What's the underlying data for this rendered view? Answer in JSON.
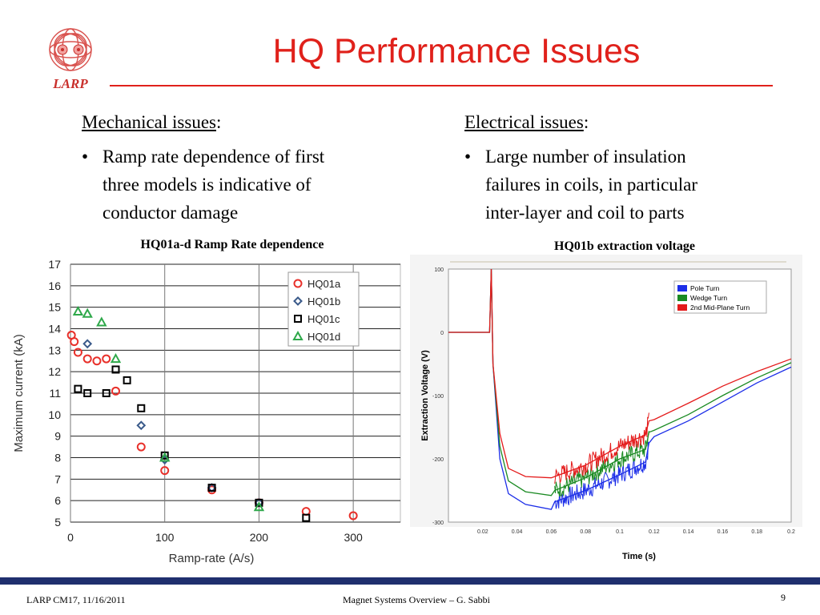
{
  "logo": {
    "text": "LARP"
  },
  "title": "HQ Performance Issues",
  "left_column": {
    "heading": "Mechanical issues",
    "heading_suffix": ":",
    "bullet_lines": [
      "Ramp rate dependence of first",
      "three models is indicative of",
      "conductor damage"
    ]
  },
  "right_column": {
    "heading": "Electrical issues",
    "heading_suffix": ":",
    "bullet_lines": [
      "Large number of insulation",
      "failures in coils, in particular",
      "inter-layer and coil to parts"
    ]
  },
  "bullet_char": "•",
  "chart_captions": {
    "left": "HQ01a-d Ramp Rate dependence",
    "right": "HQ01b extraction voltage"
  },
  "chart_data": [
    {
      "type": "scatter",
      "title": "",
      "xlabel": "Ramp-rate (A/s)",
      "ylabel": "Maximum current (kA)",
      "xlim": [
        0,
        350
      ],
      "ylim": [
        5,
        17
      ],
      "xticks": [
        "0",
        "100",
        "200",
        "300"
      ],
      "yticks": [
        "5",
        "6",
        "7",
        "8",
        "9",
        "10",
        "11",
        "12",
        "13",
        "14",
        "15",
        "16",
        "17"
      ],
      "grid": true,
      "legend_position": "top-right",
      "series": [
        {
          "name": "HQ01a",
          "marker": "circle",
          "color": "#e8302a",
          "points": [
            [
              1,
              13.7
            ],
            [
              4,
              13.4
            ],
            [
              8,
              12.9
            ],
            [
              18,
              12.6
            ],
            [
              28,
              12.5
            ],
            [
              38,
              12.6
            ],
            [
              48,
              11.1
            ],
            [
              75,
              8.5
            ],
            [
              100,
              7.4
            ],
            [
              150,
              6.5
            ],
            [
              200,
              5.9
            ],
            [
              250,
              5.5
            ],
            [
              300,
              5.3
            ]
          ]
        },
        {
          "name": "HQ01b",
          "marker": "diamond",
          "color": "#3a5a8a",
          "points": [
            [
              18,
              13.3
            ],
            [
              75,
              9.5
            ],
            [
              100,
              7.9
            ],
            [
              150,
              6.6
            ],
            [
              200,
              5.9
            ]
          ]
        },
        {
          "name": "HQ01c",
          "marker": "square",
          "color": "#000000",
          "points": [
            [
              8,
              11.2
            ],
            [
              18,
              11.0
            ],
            [
              38,
              11.0
            ],
            [
              48,
              12.1
            ],
            [
              60,
              11.6
            ],
            [
              75,
              10.3
            ],
            [
              100,
              8.1
            ],
            [
              150,
              6.6
            ],
            [
              200,
              5.9
            ],
            [
              250,
              5.2
            ]
          ]
        },
        {
          "name": "HQ01d",
          "marker": "triangle",
          "color": "#2ea84a",
          "points": [
            [
              8,
              14.8
            ],
            [
              18,
              14.7
            ],
            [
              33,
              14.3
            ],
            [
              48,
              12.6
            ],
            [
              100,
              8.0
            ],
            [
              200,
              5.7
            ]
          ]
        }
      ]
    },
    {
      "type": "line",
      "title": "",
      "xlabel": "Time (s)",
      "ylabel": "Extraction Voltage (V)",
      "xlim": [
        0,
        0.2
      ],
      "ylim": [
        -300,
        100
      ],
      "xticks": [
        "0.02",
        "0.04",
        "0.06",
        "0.08",
        "0.1",
        "0.12",
        "0.14",
        "0.16",
        "0.18",
        "0.2"
      ],
      "yticks": [
        "100",
        "0",
        "-100",
        "-200",
        "-300"
      ],
      "legend_position": "top-right",
      "series": [
        {
          "name": "Pole Turn",
          "color": "#1c2ee8",
          "points": [
            [
              0,
              0
            ],
            [
              0.024,
              0
            ],
            [
              0.025,
              100
            ],
            [
              0.026,
              -50
            ],
            [
              0.03,
              -200
            ],
            [
              0.035,
              -255
            ],
            [
              0.045,
              -272
            ],
            [
              0.06,
              -280
            ],
            [
              0.062,
              -268
            ],
            [
              0.08,
              -250
            ],
            [
              0.1,
              -225
            ],
            [
              0.115,
              -205
            ],
            [
              0.117,
              -175
            ],
            [
              0.12,
              -165
            ],
            [
              0.14,
              -140
            ],
            [
              0.16,
              -110
            ],
            [
              0.18,
              -80
            ],
            [
              0.2,
              -55
            ]
          ]
        },
        {
          "name": "Wedge Turn",
          "color": "#1a8a22",
          "points": [
            [
              0,
              0
            ],
            [
              0.024,
              0
            ],
            [
              0.025,
              100
            ],
            [
              0.026,
              -50
            ],
            [
              0.03,
              -180
            ],
            [
              0.035,
              -235
            ],
            [
              0.045,
              -252
            ],
            [
              0.06,
              -258
            ],
            [
              0.062,
              -250
            ],
            [
              0.08,
              -230
            ],
            [
              0.1,
              -200
            ],
            [
              0.115,
              -185
            ],
            [
              0.117,
              -158
            ],
            [
              0.12,
              -155
            ],
            [
              0.14,
              -130
            ],
            [
              0.16,
              -100
            ],
            [
              0.18,
              -72
            ],
            [
              0.2,
              -48
            ]
          ]
        },
        {
          "name": "2nd Mid-Plane Turn",
          "color": "#e41a1a",
          "points": [
            [
              0,
              0
            ],
            [
              0.024,
              0
            ],
            [
              0.025,
              100
            ],
            [
              0.026,
              -50
            ],
            [
              0.03,
              -160
            ],
            [
              0.035,
              -215
            ],
            [
              0.045,
              -228
            ],
            [
              0.06,
              -230
            ],
            [
              0.062,
              -228
            ],
            [
              0.08,
              -210
            ],
            [
              0.1,
              -180
            ],
            [
              0.115,
              -162
            ],
            [
              0.117,
              -140
            ],
            [
              0.12,
              -138
            ],
            [
              0.14,
              -112
            ],
            [
              0.16,
              -85
            ],
            [
              0.18,
              -62
            ],
            [
              0.2,
              -42
            ]
          ]
        }
      ]
    }
  ],
  "footer": {
    "left": "LARP CM17, 11/16/2011",
    "center": "Magnet Systems Overview – G. Sabbi",
    "page_number": "9"
  },
  "colors": {
    "title": "#e0211b",
    "footer_bar": "#1f2f6e"
  }
}
